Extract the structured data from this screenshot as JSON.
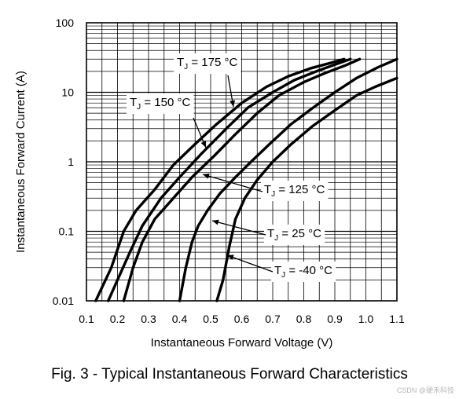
{
  "chart_data": {
    "type": "line",
    "xlabel": "Instantaneous Forward Voltage (V)",
    "ylabel": "Instantaneous Forward Current (A)",
    "x_scale": "linear",
    "y_scale": "log",
    "xlim": [
      0.1,
      1.1
    ],
    "ylim": [
      0.01,
      100
    ],
    "x_ticks": [
      "0.1",
      "0.2",
      "0.3",
      "0.4",
      "0.5",
      "0.6",
      "0.7",
      "0.8",
      "0.9",
      "1.0",
      "1.1"
    ],
    "y_ticks": [
      "0.01",
      "0.1",
      "1",
      "10",
      "100"
    ],
    "grid": true,
    "series": [
      {
        "name": "T_J = 175 °C",
        "label_main": "T",
        "label_sub": "J",
        "label_rest": " = 175 °C",
        "x": [
          0.13,
          0.18,
          0.22,
          0.26,
          0.32,
          0.38,
          0.45,
          0.52,
          0.6,
          0.68,
          0.75,
          0.82,
          0.88,
          0.93
        ],
        "y": [
          0.01,
          0.03,
          0.1,
          0.2,
          0.4,
          0.9,
          1.8,
          3.5,
          7,
          12,
          17,
          22,
          26,
          30
        ]
      },
      {
        "name": "T_J = 150 °C",
        "label_main": "T",
        "label_sub": "J",
        "label_rest": " = 150 °C",
        "x": [
          0.17,
          0.2,
          0.24,
          0.28,
          0.34,
          0.4,
          0.47,
          0.55,
          0.62,
          0.7,
          0.77,
          0.84,
          0.9,
          0.95
        ],
        "y": [
          0.01,
          0.02,
          0.05,
          0.12,
          0.3,
          0.6,
          1.3,
          3,
          6,
          10,
          15,
          20,
          25,
          30
        ]
      },
      {
        "name": "T_J = 125 °C",
        "label_main": "T",
        "label_sub": "J",
        "label_rest": " = 125 °C",
        "x": [
          0.22,
          0.25,
          0.28,
          0.32,
          0.38,
          0.44,
          0.51,
          0.58,
          0.65,
          0.72,
          0.8,
          0.87,
          0.93,
          0.98
        ],
        "y": [
          0.01,
          0.03,
          0.07,
          0.15,
          0.3,
          0.6,
          1.2,
          2.5,
          5,
          9,
          14,
          19,
          24,
          30
        ]
      },
      {
        "name": "T_J = 25 °C",
        "label_main": "T",
        "label_sub": "J",
        "label_rest": " = 25 °C",
        "x": [
          0.4,
          0.42,
          0.44,
          0.46,
          0.49,
          0.53,
          0.58,
          0.63,
          0.69,
          0.76,
          0.83,
          0.9,
          0.97,
          1.04,
          1.1
        ],
        "y": [
          0.01,
          0.03,
          0.07,
          0.12,
          0.2,
          0.35,
          0.6,
          1.0,
          1.8,
          3.5,
          6,
          10,
          16,
          23,
          30
        ]
      },
      {
        "name": "T_J = -40 °C",
        "label_main": "T",
        "label_sub": "J",
        "label_rest": " = -40 °C",
        "x": [
          0.52,
          0.54,
          0.56,
          0.58,
          0.61,
          0.65,
          0.7,
          0.76,
          0.83,
          0.9,
          0.97,
          1.03,
          1.1
        ],
        "y": [
          0.01,
          0.02,
          0.06,
          0.15,
          0.3,
          0.55,
          1.0,
          1.8,
          3.3,
          5.5,
          9,
          12,
          16
        ]
      }
    ]
  },
  "caption": "Fig. 3 - Typical Instantaneous Forward Characteristics",
  "watermark": "CSDN @硬禾科技"
}
